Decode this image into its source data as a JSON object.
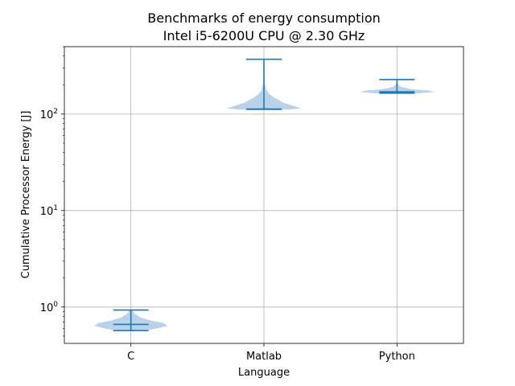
{
  "chart_data": {
    "type": "violin",
    "title": "Benchmarks of energy consumption",
    "subtitle": "Intel i5-6200U CPU @ 2.30 GHz",
    "xlabel": "Language",
    "ylabel": "Cumulative Processor Energy [J]",
    "yscale": "log",
    "ylim": [
      0.42,
      500
    ],
    "grid": true,
    "color": "#1f77b4",
    "fill_color": "#b7d0e8",
    "categories": [
      "C",
      "Matlab",
      "Python"
    ],
    "series": [
      {
        "category": "C",
        "min": 0.57,
        "median": 0.66,
        "max": 0.93,
        "density": [
          [
            0.57,
            0.35
          ],
          [
            0.6,
            0.7
          ],
          [
            0.64,
            1.0
          ],
          [
            0.68,
            0.9
          ],
          [
            0.72,
            0.55
          ],
          [
            0.78,
            0.25
          ],
          [
            0.85,
            0.1
          ],
          [
            0.93,
            0.03
          ]
        ]
      },
      {
        "category": "Matlab",
        "min": 112,
        "median": 113,
        "max": 370,
        "density": [
          [
            112,
            0.7
          ],
          [
            115,
            1.0
          ],
          [
            120,
            0.85
          ],
          [
            130,
            0.55
          ],
          [
            145,
            0.32
          ],
          [
            160,
            0.15
          ],
          [
            180,
            0.05
          ],
          [
            220,
            0.01
          ],
          [
            370,
            0.0
          ]
        ]
      },
      {
        "category": "Python",
        "min": 165,
        "median": 170,
        "max": 228,
        "density": [
          [
            165,
            0.6
          ],
          [
            170,
            1.0
          ],
          [
            175,
            0.85
          ],
          [
            180,
            0.4
          ],
          [
            190,
            0.12
          ],
          [
            200,
            0.03
          ],
          [
            228,
            0.0
          ]
        ]
      }
    ],
    "ytick_labels": [
      {
        "value": 1,
        "base": "10",
        "exp": "0"
      },
      {
        "value": 10,
        "base": "10",
        "exp": "1"
      },
      {
        "value": 100,
        "base": "10",
        "exp": "2"
      }
    ]
  }
}
